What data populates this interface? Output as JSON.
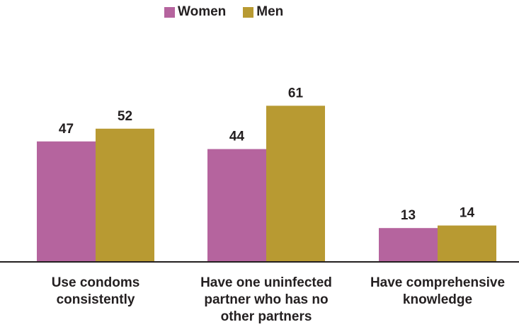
{
  "colors": {
    "women": "#b5649e",
    "men": "#b89a32",
    "axis": "#231f20",
    "text": "#231f20"
  },
  "chart_data": {
    "type": "bar",
    "title": "",
    "xlabel": "",
    "ylabel": "",
    "ylim": [
      0,
      70
    ],
    "grid": false,
    "legend_position": "top-center",
    "categories": [
      [
        "Use condoms",
        "consistently"
      ],
      [
        "Have one uninfected",
        "partner who has no",
        "other partners"
      ],
      [
        "Have comprehensive",
        "knowledge"
      ]
    ],
    "series": [
      {
        "name": "Women",
        "color": "#b5649e",
        "values": [
          47,
          44,
          13
        ]
      },
      {
        "name": "Men",
        "color": "#b89a32",
        "values": [
          52,
          61,
          14
        ]
      }
    ]
  }
}
